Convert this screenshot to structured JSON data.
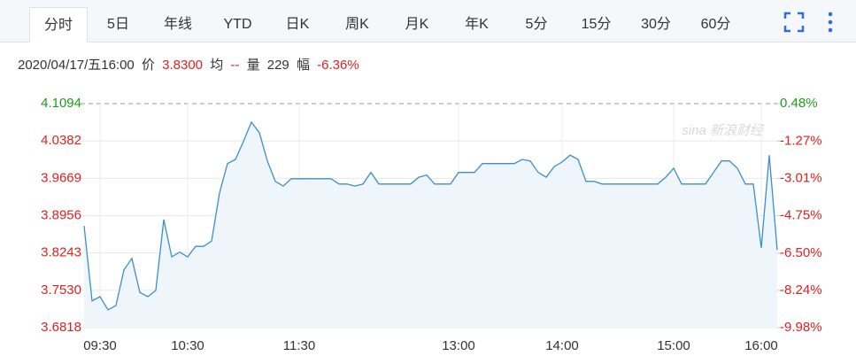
{
  "tabs": [
    "分时",
    "5日",
    "年线",
    "YTD",
    "日K",
    "周K",
    "月K",
    "年K",
    "5分",
    "15分",
    "30分",
    "60分"
  ],
  "active_tab": 0,
  "info": {
    "time": "2020/04/17/五16:00",
    "price_label": "价",
    "price": "3.8300",
    "avg_label": "均",
    "avg": "--",
    "volume_label": "量",
    "volume": "229",
    "change_label": "幅",
    "change": "-6.36%"
  },
  "watermark": "sina 新浪财经",
  "chart_data": {
    "type": "line",
    "categories": [
      null,
      null,
      "09:30",
      null,
      null,
      null,
      null,
      null,
      null,
      null,
      null,
      null,
      null,
      "10:30",
      null,
      null,
      null,
      null,
      null,
      null,
      null,
      null,
      null,
      null,
      null,
      null,
      null,
      "11:30",
      null,
      null,
      null,
      null,
      null,
      null,
      null,
      null,
      null,
      null,
      null,
      null,
      null,
      null,
      null,
      null,
      null,
      null,
      null,
      "13:00",
      null,
      null,
      null,
      null,
      null,
      null,
      null,
      null,
      null,
      null,
      null,
      null,
      "14:00",
      null,
      null,
      null,
      null,
      null,
      null,
      null,
      null,
      null,
      null,
      null,
      null,
      null,
      "15:00",
      null,
      null,
      null,
      null,
      null,
      null,
      null,
      null,
      null,
      null,
      "16:00",
      null,
      null
    ],
    "series": [
      {
        "color": "#3b8fce",
        "fill": "#eef5fb",
        "values": [
          3.876,
          3.733,
          3.741,
          3.716,
          3.724,
          3.792,
          3.814,
          3.749,
          3.741,
          3.753,
          3.888,
          3.817,
          3.826,
          3.817,
          3.837,
          3.837,
          3.847,
          3.939,
          3.995,
          4.003,
          4.037,
          4.074,
          4.054,
          4.0,
          3.961,
          3.952,
          3.966,
          3.966,
          3.966,
          3.966,
          3.966,
          3.966,
          3.956,
          3.956,
          3.952,
          3.956,
          3.978,
          3.956,
          3.956,
          3.956,
          3.956,
          3.956,
          3.969,
          3.973,
          3.956,
          3.956,
          3.956,
          3.978,
          3.978,
          3.978,
          3.995,
          3.995,
          3.995,
          3.995,
          3.995,
          4.003,
          4.0,
          3.978,
          3.969,
          3.989,
          3.998,
          4.011,
          4.003,
          3.961,
          3.961,
          3.956,
          3.956,
          3.956,
          3.956,
          3.956,
          3.956,
          3.956,
          3.956,
          3.969,
          3.986,
          3.956,
          3.956,
          3.956,
          3.956,
          3.978,
          4.0,
          4.0,
          3.986,
          3.956,
          3.956,
          3.834,
          4.011,
          3.83
        ]
      }
    ],
    "ylim": [
      3.6818,
      4.1094
    ],
    "yticks": [
      3.6818,
      {
        "value": 3.753,
        "label": "3.7530"
      },
      3.8243,
      {
        "value": 3.8956,
        "label": "3.8956"
      },
      3.9669,
      4.0382,
      4.1094
    ],
    "y2lim": [
      -9.98,
      0.48
    ],
    "y2ticks": [
      {
        "value": -9.98,
        "label": "-9.98%"
      },
      {
        "value": -8.24,
        "label": "-8.24%"
      },
      {
        "value": -6.5,
        "label": "-6.50%"
      },
      {
        "value": -4.75,
        "label": "-4.75%"
      },
      {
        "value": -3.01,
        "label": "-3.01%"
      },
      {
        "value": -1.27,
        "label": "-1.27%"
      },
      {
        "value": 0.48,
        "label": "0.48%"
      }
    ],
    "up_color": "#1a9e1a",
    "down_color": "#e0211e",
    "grid": true
  }
}
